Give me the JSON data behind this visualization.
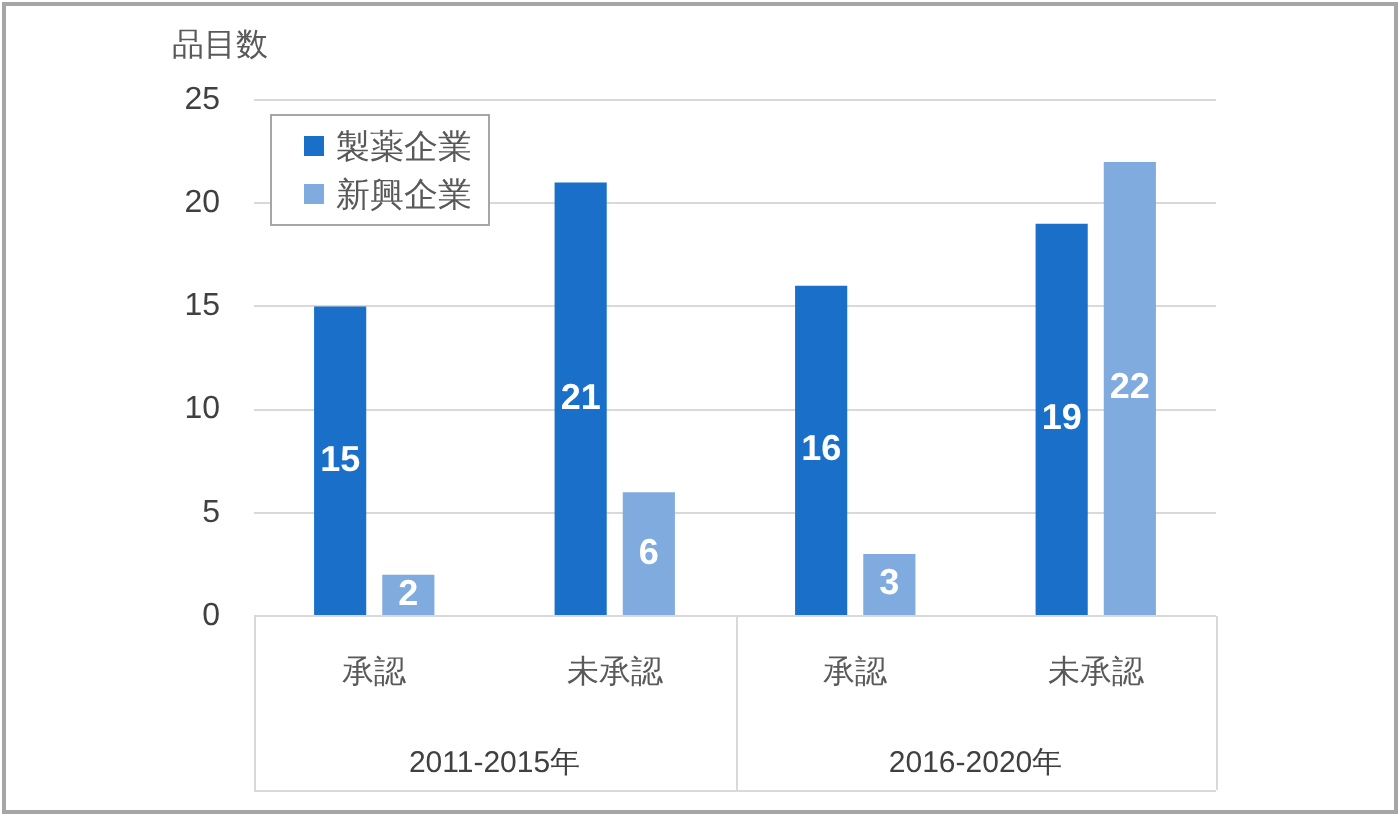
{
  "chart_data": {
    "type": "bar",
    "ylabel": "品目数",
    "categories": [
      "承認",
      "未承認",
      "承認",
      "未承認"
    ],
    "series": [
      {
        "name": "製薬企業",
        "color": "#1a70c8",
        "values": [
          15,
          21,
          16,
          19
        ]
      },
      {
        "name": "新興企業",
        "color": "#80abdf",
        "values": [
          2,
          6,
          3,
          22
        ]
      }
    ],
    "ylim": [
      0,
      25
    ],
    "yticks": [
      0,
      5,
      10,
      15,
      20,
      25
    ],
    "grid": "y",
    "legend": "top left",
    "data_labels": true,
    "annotations": [
      "2011-2015年",
      "2016-2020年"
    ]
  }
}
